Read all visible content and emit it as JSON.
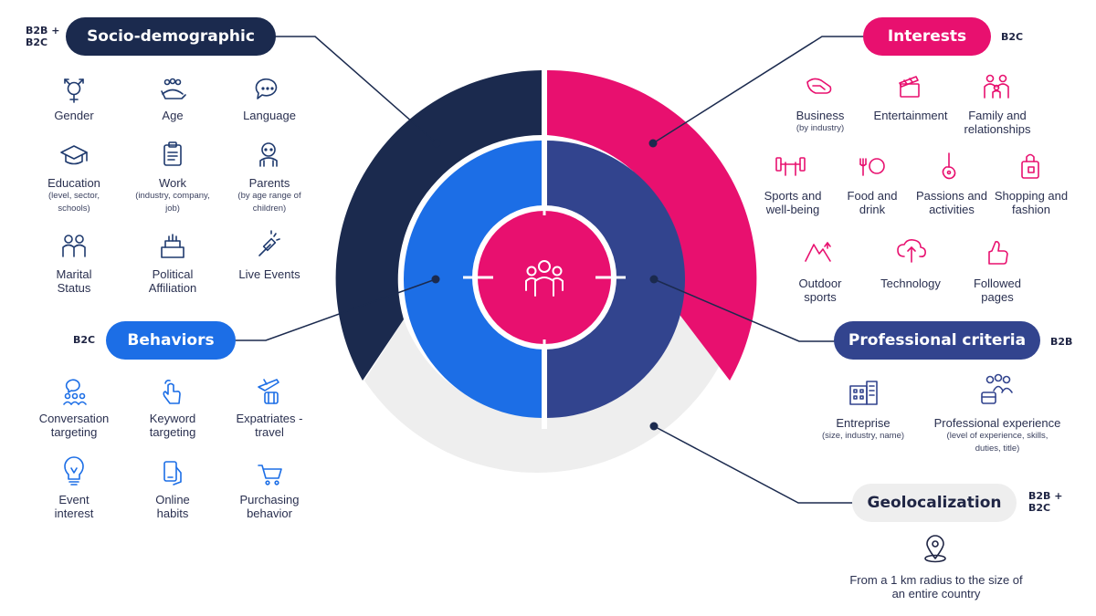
{
  "colors": {
    "dark_navy": "#1b2a4e",
    "pink": "#e8106f",
    "blue": "#1c6ee6",
    "navy": "#32448e",
    "light_gray": "#eeeeee",
    "connector": "#1b2a4e"
  },
  "socio": {
    "title": "Socio-demographic",
    "tag": "B2B + B2C",
    "items": [
      {
        "label": "Gender",
        "sub": "",
        "icon": "gender-icon"
      },
      {
        "label": "Age",
        "sub": "",
        "icon": "age-icon"
      },
      {
        "label": "Language",
        "sub": "",
        "icon": "language-icon"
      },
      {
        "label": "Education",
        "sub": "(level, sector, schools)",
        "icon": "graduation-cap-icon"
      },
      {
        "label": "Work",
        "sub": "(industry, company, job)",
        "icon": "clipboard-icon"
      },
      {
        "label": "Parents",
        "sub": "(by age range of children)",
        "icon": "baby-icon"
      },
      {
        "label": "Marital Status",
        "sub": "",
        "icon": "couple-icon"
      },
      {
        "label": "Political Affiliation",
        "sub": "",
        "icon": "ballot-box-icon"
      },
      {
        "label": "Live Events",
        "sub": "",
        "icon": "firework-icon"
      }
    ]
  },
  "behaviors": {
    "title": "Behaviors",
    "tag": "B2C",
    "items": [
      {
        "label": "Conversation targeting",
        "icon": "conversation-group-icon"
      },
      {
        "label": "Keyword targeting",
        "icon": "keyword-hand-icon"
      },
      {
        "label": "Expatriates - travel",
        "icon": "travel-icon"
      },
      {
        "label": "Event interest",
        "icon": "lightbulb-icon"
      },
      {
        "label": "Online habits",
        "icon": "phone-hand-icon"
      },
      {
        "label": "Purchasing behavior",
        "icon": "cart-icon"
      }
    ]
  },
  "interests": {
    "title": "Interests",
    "tag": "B2C",
    "items": [
      {
        "label": "Business",
        "sub": "(by industry)",
        "icon": "handshake-icon"
      },
      {
        "label": "Entertainment",
        "sub": "",
        "icon": "clapperboard-icon"
      },
      {
        "label": "Family and relationships",
        "sub": "",
        "icon": "family-icon"
      },
      {
        "label": "Sports and well-being",
        "sub": "",
        "icon": "dumbbell-icon"
      },
      {
        "label": "Food and drink",
        "sub": "",
        "icon": "food-icon"
      },
      {
        "label": "Passions and activities",
        "sub": "",
        "icon": "guitar-icon"
      },
      {
        "label": "Shopping and fashion",
        "sub": "",
        "icon": "shopping-bag-icon"
      },
      {
        "label": "Outdoor sports",
        "sub": "",
        "icon": "mountain-icon"
      },
      {
        "label": "Technology",
        "sub": "",
        "icon": "cloud-upload-icon"
      },
      {
        "label": "Followed pages",
        "sub": "",
        "icon": "thumbs-up-icon"
      }
    ]
  },
  "professional": {
    "title": "Professional criteria",
    "tag": "B2B",
    "items": [
      {
        "label": "Entreprise",
        "sub": "(size, industry, name)",
        "icon": "building-icon"
      },
      {
        "label": "Professional experience",
        "sub": "(level of experience, skills, duties, title)",
        "icon": "team-icon"
      }
    ]
  },
  "geo": {
    "title": "Geolocalization",
    "tag": "B2B + B2C",
    "icon": "map-pin-icon",
    "note": "From a 1 km radius to the size of an entire country"
  },
  "center": {
    "icon": "audience-group-icon"
  }
}
